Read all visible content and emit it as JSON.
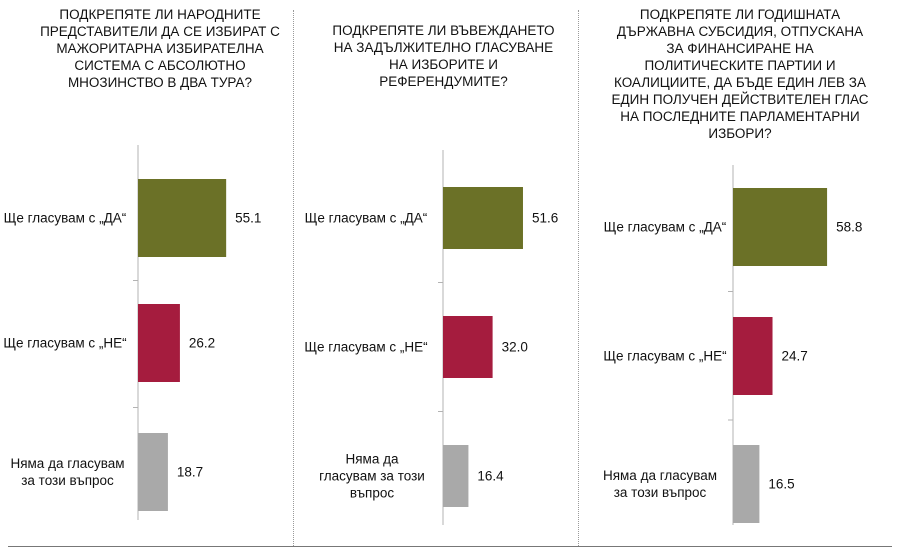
{
  "colors": {
    "yes": "#6b7127",
    "no": "#a51c3e",
    "abstain": "#a9a9a9",
    "axis": "#b3b3b3"
  },
  "chart_data": [
    {
      "type": "bar",
      "title": "ПОДКРЕПЯТЕ ЛИ НАРОДНИТЕ ПРЕДСТАВИТЕЛИ ДА СЕ ИЗБИРАТ С МАЖОРИТАРНА ИЗБИРАТЕЛНА СИСТЕМА С АБСОЛЮТНО МНОЗИНСТВО В ДВА ТУРА?",
      "categories": [
        "Ще гласувам с „ДА“",
        "Ще гласувам с „НЕ“",
        "Няма да гласувам за този въпрос"
      ],
      "values": [
        55.1,
        26.2,
        18.7
      ],
      "value_labels": [
        "55.1",
        "26.2",
        "18.7"
      ],
      "orientation": "horizontal",
      "xlim": [
        0,
        100
      ]
    },
    {
      "type": "bar",
      "title": "ПОДКРЕПЯТЕ ЛИ ВЪВЕЖДАНЕТО НА ЗАДЪЛЖИТЕЛНО ГЛАСУВАНЕ НА ИЗБОРИТЕ И РЕФЕРЕНДУМИТЕ?",
      "categories": [
        "Ще гласувам с „ДА“",
        "Ще гласувам с „НЕ“",
        "Няма да гласувам за този въпрос"
      ],
      "values": [
        51.6,
        32.0,
        16.4
      ],
      "value_labels": [
        "51.6",
        "32.0",
        "16.4"
      ],
      "orientation": "horizontal",
      "xlim": [
        0,
        100
      ]
    },
    {
      "type": "bar",
      "title": "ПОДКРЕПЯТЕ ЛИ ГОДИШНАТА ДЪРЖАВНА СУБСИДИЯ, ОТПУСКАНА ЗА ФИНАНСИРАНЕ НА ПОЛИТИЧЕСКИТЕ ПАРТИИ И КОАЛИЦИИТЕ, ДА БЪДЕ ЕДИН ЛЕВ ЗА ЕДИН ПОЛУЧЕН ДЕЙСТВИТЕЛЕН ГЛАС НА ПОСЛЕДНИТЕ ПАРЛАМЕНТАРНИ ИЗБОРИ?",
      "categories": [
        "Ще гласувам с „ДА“",
        "Ще гласувам с „НЕ“",
        "Няма да гласувам за този въпрос"
      ],
      "values": [
        58.8,
        24.7,
        16.5
      ],
      "value_labels": [
        "58.8",
        "24.7",
        "16.5"
      ],
      "orientation": "horizontal",
      "xlim": [
        0,
        100
      ]
    }
  ]
}
